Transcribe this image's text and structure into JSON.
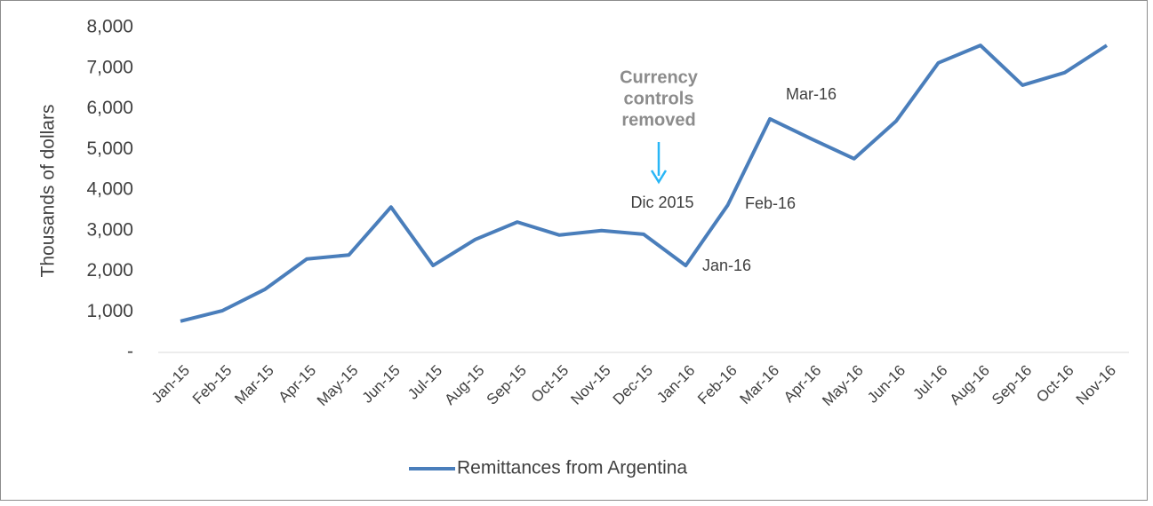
{
  "chart_data": {
    "type": "line",
    "y_label": "Thousands of dollars",
    "categories": [
      "Jan-15",
      "Feb-15",
      "Mar-15",
      "Apr-15",
      "May-15",
      "Jun-15",
      "Jul-15",
      "Aug-15",
      "Sep-15",
      "Oct-15",
      "Nov-15",
      "Dec-15",
      "Jan-16",
      "Feb-16",
      "Mar-16",
      "Apr-16",
      "May-16",
      "Jun-16",
      "Jul-16",
      "Aug-16",
      "Sep-16",
      "Oct-16",
      "Nov-16"
    ],
    "series": [
      {
        "name": "Remittances from Argentina",
        "color": "#4a7ebb",
        "values": [
          770,
          1030,
          1550,
          2300,
          2400,
          3580,
          2140,
          2780,
          3210,
          2890,
          3000,
          2910,
          2140,
          3630,
          5750,
          5250,
          4770,
          5700,
          7130,
          7560,
          6580,
          6890,
          7560
        ]
      }
    ],
    "ylim": [
      0,
      8000
    ],
    "yticks": [
      {
        "value": 0,
        "label": "-"
      },
      {
        "value": 1000,
        "label": "1,000"
      },
      {
        "value": 2000,
        "label": "2,000"
      },
      {
        "value": 3000,
        "label": "3,000"
      },
      {
        "value": 4000,
        "label": "4,000"
      },
      {
        "value": 5000,
        "label": "5,000"
      },
      {
        "value": 6000,
        "label": "6,000"
      },
      {
        "value": 7000,
        "label": "7,000"
      },
      {
        "value": 8000,
        "label": "8,000"
      }
    ],
    "annotation": {
      "lines": [
        "Currency",
        "controls",
        "removed"
      ],
      "color": "#29b6f6"
    },
    "point_labels": [
      "Dic 2015",
      "Jan-16",
      "Feb-16",
      "Mar-16"
    ],
    "legend": "bottom"
  }
}
